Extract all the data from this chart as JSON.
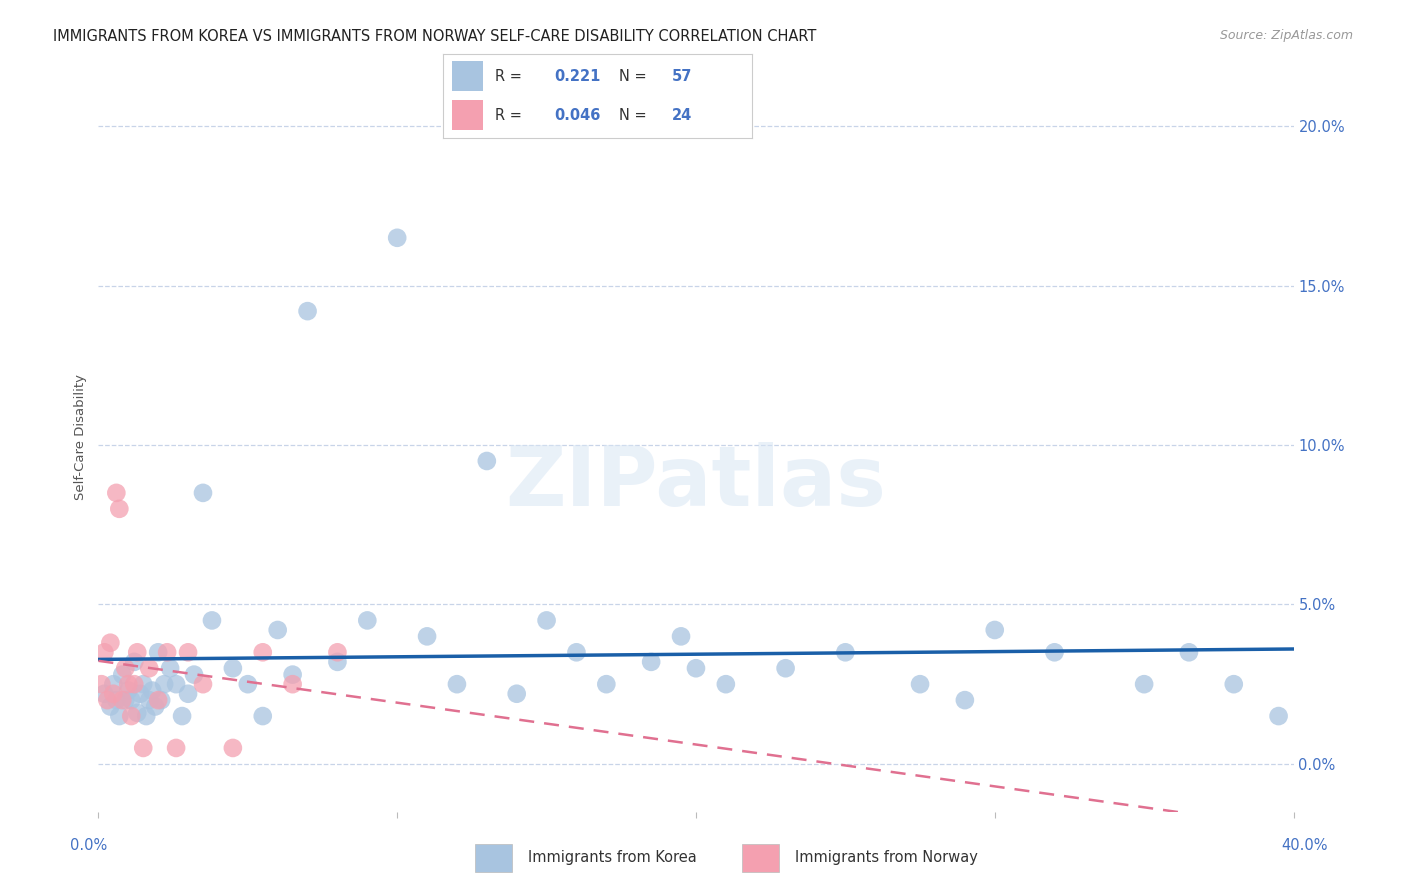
{
  "title": "IMMIGRANTS FROM KOREA VS IMMIGRANTS FROM NORWAY SELF-CARE DISABILITY CORRELATION CHART",
  "source": "Source: ZipAtlas.com",
  "ylabel": "Self-Care Disability",
  "ytick_values": [
    0.0,
    5.0,
    10.0,
    15.0,
    20.0
  ],
  "ytick_labels": [
    "0.0%",
    "5.0%",
    "10.0%",
    "15.0%",
    "20.0%"
  ],
  "xlim": [
    0.0,
    40.0
  ],
  "ylim": [
    -1.5,
    22.0
  ],
  "korea_color": "#a8c4e0",
  "norway_color": "#f4a0b0",
  "korea_line_color": "#1a5fa8",
  "norway_line_color": "#e07090",
  "watermark_text": "ZIPatlas",
  "background_color": "#ffffff",
  "grid_color": "#c8d4e8",
  "korea_scatter_x": [
    0.2,
    0.4,
    0.5,
    0.6,
    0.7,
    0.8,
    0.9,
    1.0,
    1.1,
    1.2,
    1.3,
    1.4,
    1.5,
    1.6,
    1.7,
    1.8,
    1.9,
    2.0,
    2.1,
    2.2,
    2.4,
    2.6,
    2.8,
    3.0,
    3.2,
    3.5,
    3.8,
    4.5,
    5.0,
    5.5,
    6.0,
    6.5,
    7.0,
    8.0,
    9.0,
    10.0,
    11.0,
    12.0,
    13.0,
    14.0,
    15.0,
    16.0,
    17.0,
    18.5,
    19.5,
    21.0,
    23.0,
    25.0,
    27.5,
    29.0,
    30.0,
    32.0,
    35.0,
    36.5,
    38.0,
    39.5,
    20.0
  ],
  "korea_scatter_y": [
    2.2,
    1.8,
    2.5,
    2.0,
    1.5,
    2.8,
    2.0,
    2.3,
    2.0,
    3.2,
    1.6,
    2.2,
    2.5,
    1.5,
    2.0,
    2.3,
    1.8,
    3.5,
    2.0,
    2.5,
    3.0,
    2.5,
    1.5,
    2.2,
    2.8,
    8.5,
    4.5,
    3.0,
    2.5,
    1.5,
    4.2,
    2.8,
    14.2,
    3.2,
    4.5,
    16.5,
    4.0,
    2.5,
    9.5,
    2.2,
    4.5,
    3.5,
    2.5,
    3.2,
    4.0,
    2.5,
    3.0,
    3.5,
    2.5,
    2.0,
    4.2,
    3.5,
    2.5,
    3.5,
    2.5,
    1.5,
    3.0
  ],
  "norway_scatter_x": [
    0.1,
    0.2,
    0.3,
    0.4,
    0.5,
    0.6,
    0.7,
    0.8,
    0.9,
    1.0,
    1.1,
    1.2,
    1.3,
    1.5,
    1.7,
    2.0,
    2.3,
    2.6,
    3.0,
    3.5,
    4.5,
    5.5,
    6.5,
    8.0
  ],
  "norway_scatter_y": [
    2.5,
    3.5,
    2.0,
    3.8,
    2.2,
    8.5,
    8.0,
    2.0,
    3.0,
    2.5,
    1.5,
    2.5,
    3.5,
    0.5,
    3.0,
    2.0,
    3.5,
    0.5,
    3.5,
    2.5,
    0.5,
    3.5,
    2.5,
    3.5
  ],
  "korea_R": "0.221",
  "korea_N": "57",
  "norway_R": "0.046",
  "norway_N": "24"
}
